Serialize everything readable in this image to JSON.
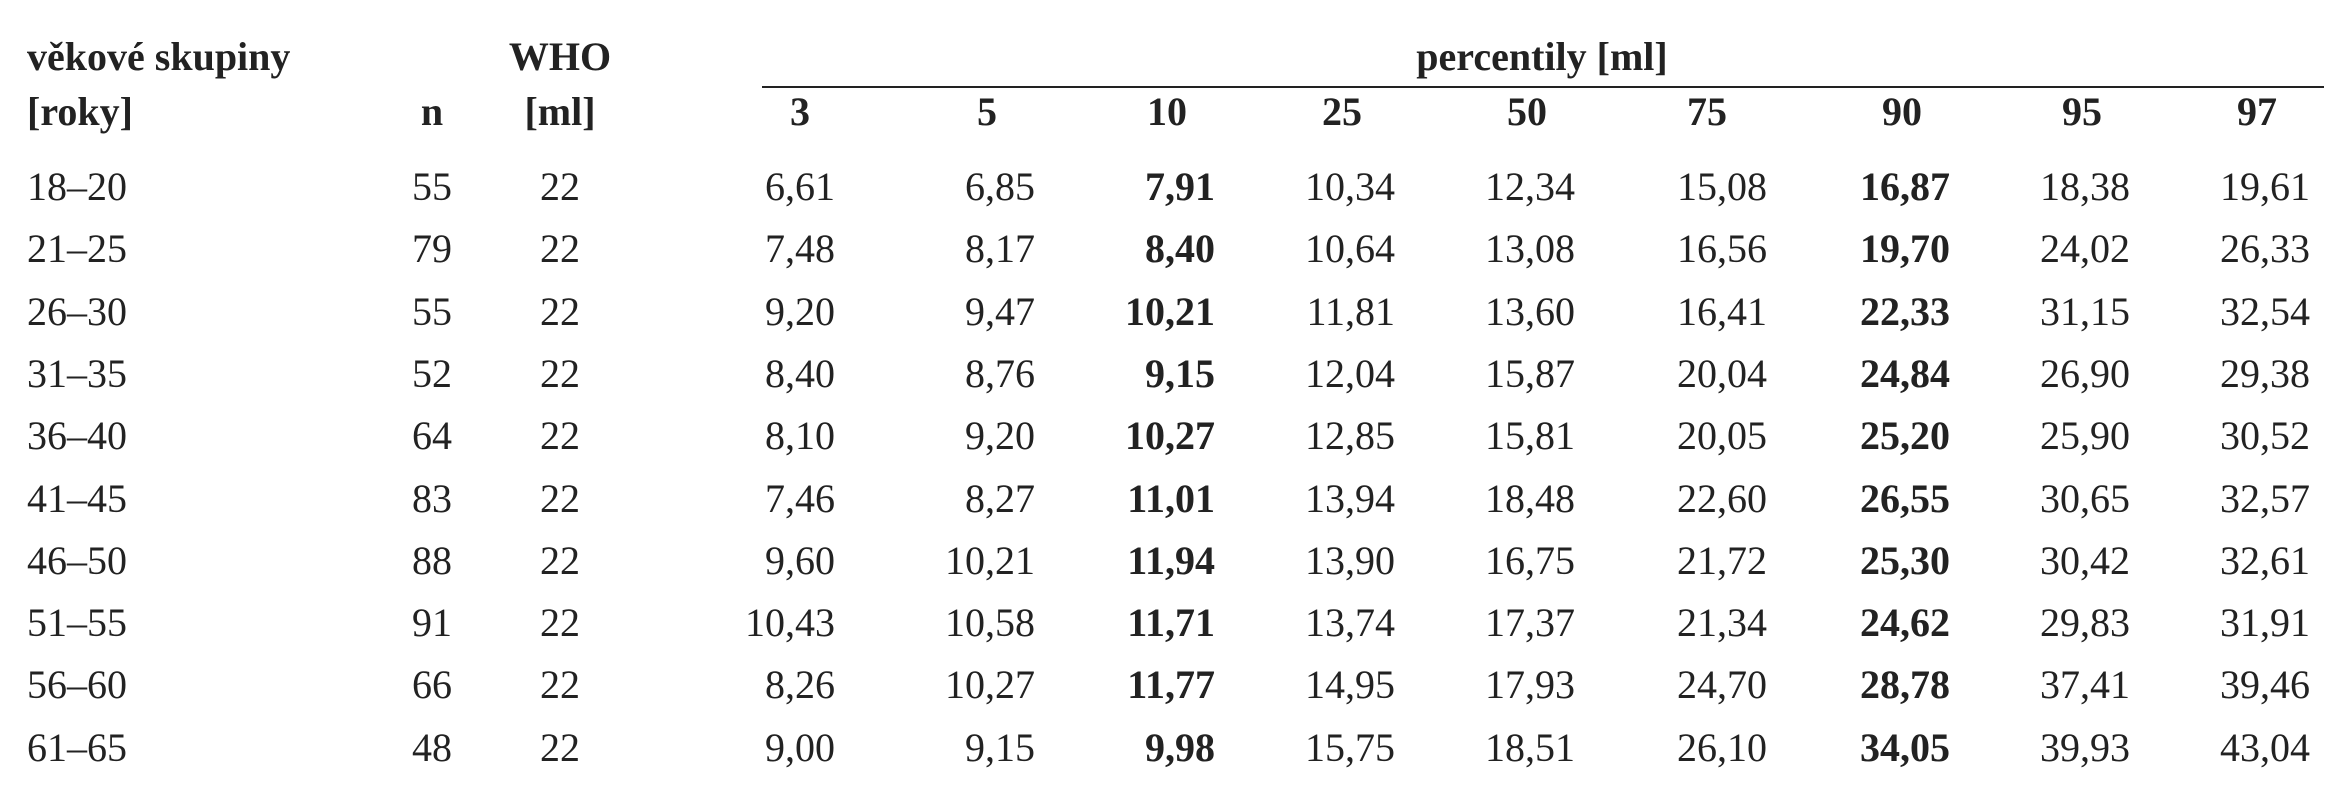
{
  "header": {
    "group": "věkové skupiny",
    "group_unit": "[roky]",
    "n": "n",
    "who": "WHO",
    "who_unit": "[ml]",
    "percentiles_title": "percentily [ml]",
    "percentiles": [
      "3",
      "5",
      "10",
      "25",
      "50",
      "75",
      "90",
      "95",
      "97"
    ]
  },
  "rows": [
    {
      "age": "18–20",
      "n": "55",
      "who": "22",
      "values": [
        "6,61",
        "6,85",
        "7,91",
        "10,34",
        "12,34",
        "15,08",
        "16,87",
        "18,38",
        "19,61"
      ]
    },
    {
      "age": "21–25",
      "n": "79",
      "who": "22",
      "values": [
        "7,48",
        "8,17",
        "8,40",
        "10,64",
        "13,08",
        "16,56",
        "19,70",
        "24,02",
        "26,33"
      ]
    },
    {
      "age": "26–30",
      "n": "55",
      "who": "22",
      "values": [
        "9,20",
        "9,47",
        "10,21",
        "11,81",
        "13,60",
        "16,41",
        "22,33",
        "31,15",
        "32,54"
      ]
    },
    {
      "age": "31–35",
      "n": "52",
      "who": "22",
      "values": [
        "8,40",
        "8,76",
        "9,15",
        "12,04",
        "15,87",
        "20,04",
        "24,84",
        "26,90",
        "29,38"
      ]
    },
    {
      "age": "36–40",
      "n": "64",
      "who": "22",
      "values": [
        "8,10",
        "9,20",
        "10,27",
        "12,85",
        "15,81",
        "20,05",
        "25,20",
        "25,90",
        "30,52"
      ]
    },
    {
      "age": "41–45",
      "n": "83",
      "who": "22",
      "values": [
        "7,46",
        "8,27",
        "11,01",
        "13,94",
        "18,48",
        "22,60",
        "26,55",
        "30,65",
        "32,57"
      ]
    },
    {
      "age": "46–50",
      "n": "88",
      "who": "22",
      "values": [
        "9,60",
        "10,21",
        "11,94",
        "13,90",
        "16,75",
        "21,72",
        "25,30",
        "30,42",
        "32,61"
      ]
    },
    {
      "age": "51–55",
      "n": "91",
      "who": "22",
      "values": [
        "10,43",
        "10,58",
        "11,71",
        "13,74",
        "17,37",
        "21,34",
        "24,62",
        "29,83",
        "31,91"
      ]
    },
    {
      "age": "56–60",
      "n": "66",
      "who": "22",
      "values": [
        "8,26",
        "10,27",
        "11,77",
        "14,95",
        "17,93",
        "24,70",
        "28,78",
        "37,41",
        "39,46"
      ]
    },
    {
      "age": "61–65",
      "n": "48",
      "who": "22",
      "values": [
        "9,00",
        "9,15",
        "9,98",
        "15,75",
        "18,51",
        "26,10",
        "34,05",
        "39,93",
        "43,04"
      ]
    }
  ]
}
